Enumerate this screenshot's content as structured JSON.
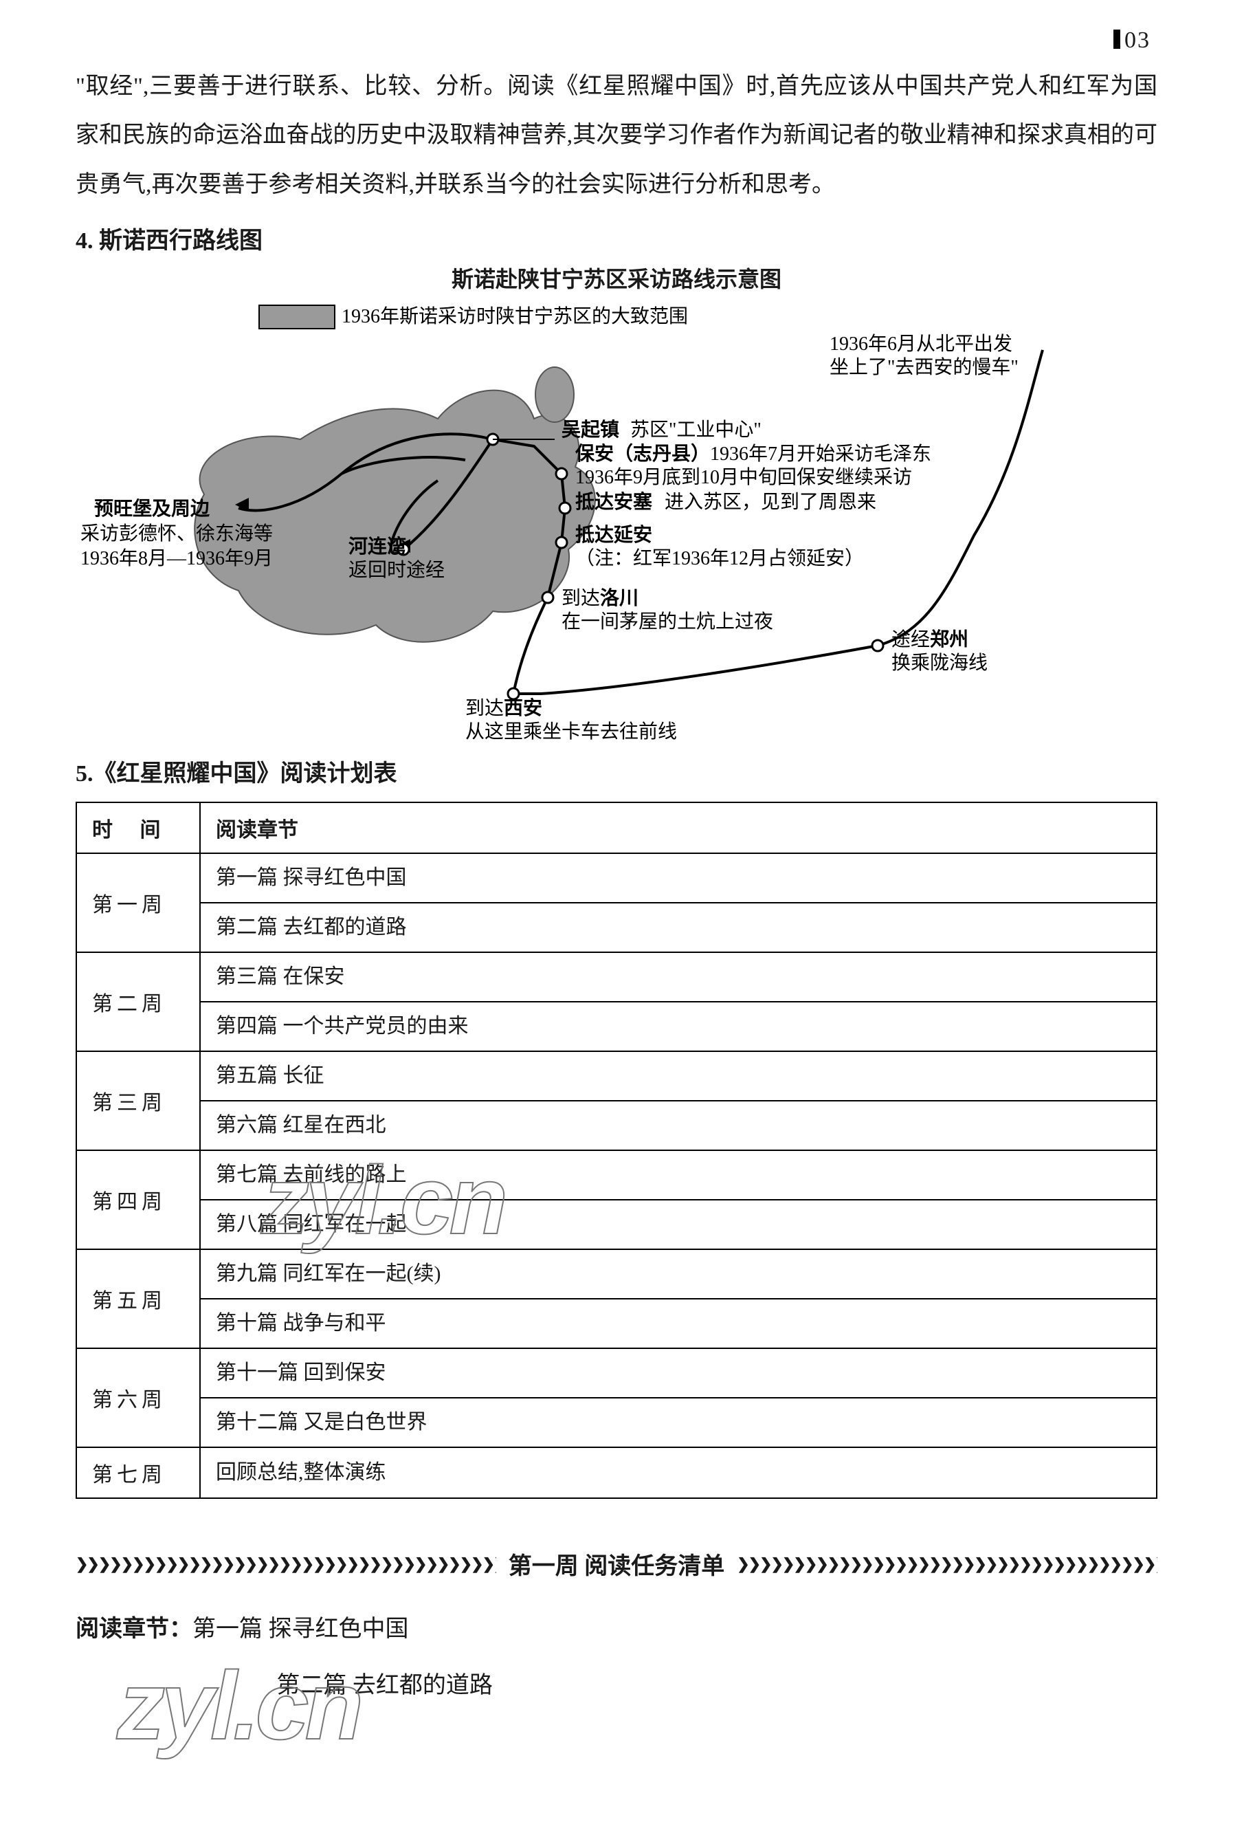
{
  "page_number": "03",
  "intro_text": "\"取经\",三要善于进行联系、比较、分析。阅读《红星照耀中国》时,首先应该从中国共产党人和红军为国家和民族的命运浴血奋战的历史中汲取精神营养,其次要学习作者作为新闻记者的敬业精神和探求真相的可贵勇气,再次要善于参考相关资料,并联系当今的社会实际进行分析和思考。",
  "section4_head": "4. 斯诺西行路线图",
  "map": {
    "title": "斯诺赴陕甘宁苏区采访路线示意图",
    "legend": "1936年斯诺采访时陕甘宁苏区的大致范围",
    "labels": {
      "start": "1936年6月从北平出发",
      "start2": "坐上了\"去西安的慢车\"",
      "zhengzhou1": "途经郑州",
      "zhengzhou2": "换乘陇海线",
      "xian1": "到达西安",
      "xian2": "从这里乘坐卡车去往前线",
      "luochuan1": "到达洛川",
      "luochuan2": "在一间茅屋的土炕上过夜",
      "yanan1": "抵达延安",
      "yanan2": "（注：红军1936年12月占领延安）",
      "ansai1": "抵达安塞",
      "ansai2": "进入苏区，见到了周恩来",
      "baoan1": "保安（志丹县）1936年7月开始采访毛泽东",
      "baoan2": "1936年9月底到10月中旬回保安继续采访",
      "wuqi1": "吴起镇",
      "wuqi2": "苏区\"工业中心\"",
      "helian1": "河连湾",
      "helian2": "返回时途经",
      "yuwang1": "预旺堡及周边",
      "yuwang2": "采访彭德怀、徐东海等",
      "yuwang3": "1936年8月—1936年9月"
    },
    "colors": {
      "region_fill": "#9a9a9a",
      "region_stroke": "#555555",
      "route": "#000000",
      "text": "#000000",
      "legend_box_fill": "#9a9a9a",
      "dot_fill": "#ffffff",
      "dot_stroke": "#000000"
    },
    "font_size_label": 26,
    "font_size_bold": 28
  },
  "section5_head": "5.《红星照耀中国》阅读计划表",
  "plan_table": {
    "head_time": "时  间",
    "head_chapter": "阅读章节",
    "rows": [
      {
        "week": "第一周",
        "lines": [
          "第一篇  探寻红色中国",
          "第二篇  去红都的道路"
        ]
      },
      {
        "week": "第二周",
        "lines": [
          "第三篇  在保安",
          "第四篇  一个共产党员的由来"
        ]
      },
      {
        "week": "第三周",
        "lines": [
          "第五篇  长征",
          "第六篇  红星在西北"
        ]
      },
      {
        "week": "第四周",
        "lines": [
          "第七篇  去前线的路上",
          "第八篇  同红军在一起"
        ]
      },
      {
        "week": "第五周",
        "lines": [
          "第九篇  同红军在一起(续)",
          "第十篇  战争与和平"
        ]
      },
      {
        "week": "第六周",
        "lines": [
          "第十一篇  回到保安",
          "第十二篇  又是白色世界"
        ]
      },
      {
        "week": "第七周",
        "lines": [
          "回顾总结,整体演练"
        ]
      }
    ]
  },
  "divider_title": "第一周  阅读任务清单",
  "reading": {
    "label": "阅读章节：",
    "line1": "第一篇 探寻红色中国",
    "line2": "第二篇 去红都的道路"
  },
  "watermarks": {
    "wm1": "zyl.cn",
    "wm2": "zyl.cn"
  },
  "arrows": "❯❯❯❯❯❯❯❯❯❯❯❯❯❯❯❯❯❯❯❯❯❯❯❯❯❯❯❯❯❯❯❯❯❯❯❯❯❯❯❯❯❯❯❯❯❯❯❯❯❯"
}
